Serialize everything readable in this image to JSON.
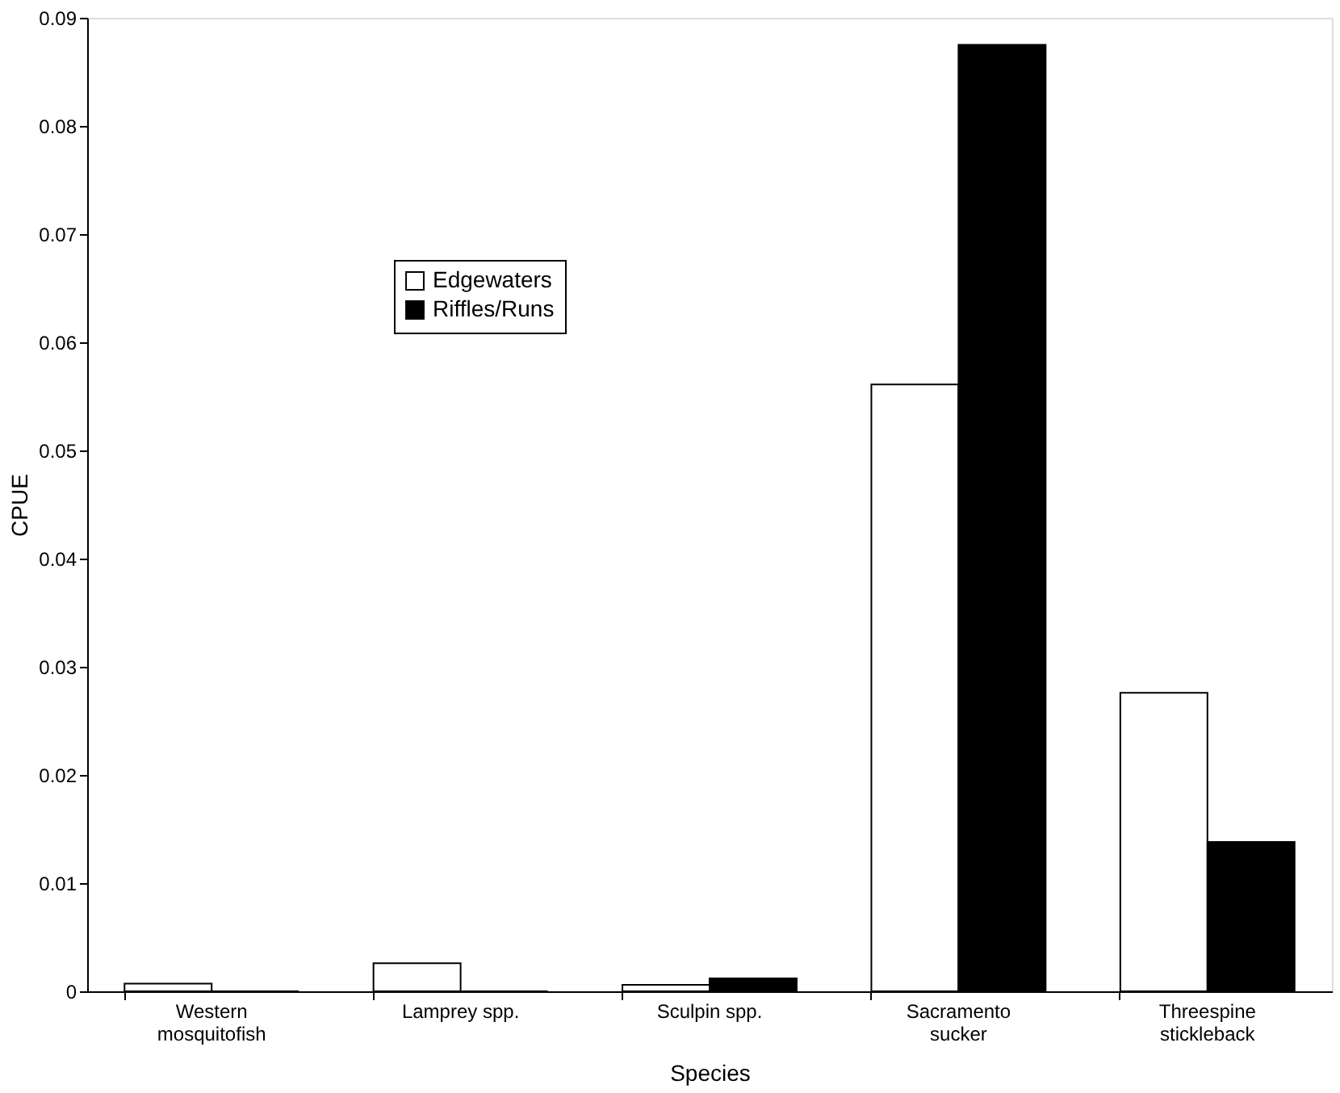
{
  "chart_data": {
    "type": "bar",
    "xlabel": "Species",
    "ylabel": "CPUE",
    "categories": [
      "Western mosquitofish",
      "Lamprey spp.",
      "Sculpin spp.",
      "Sacramento sucker",
      "Threespine stickleback"
    ],
    "series": [
      {
        "name": "Edgewaters",
        "color": "#ffffff",
        "values": [
          0.0007,
          0.0026,
          0.0006,
          0.0561,
          0.0276
        ]
      },
      {
        "name": "Riffles/Runs",
        "color": "#000000",
        "values": [
          0,
          0,
          0.0012,
          0.0875,
          0.0138
        ]
      }
    ],
    "ylim": [
      0,
      0.09
    ],
    "yticks": [
      0,
      0.01,
      0.02,
      0.03,
      0.04,
      0.05,
      0.06,
      0.07,
      0.08,
      0.09
    ],
    "grid": false,
    "legend": "top left"
  }
}
